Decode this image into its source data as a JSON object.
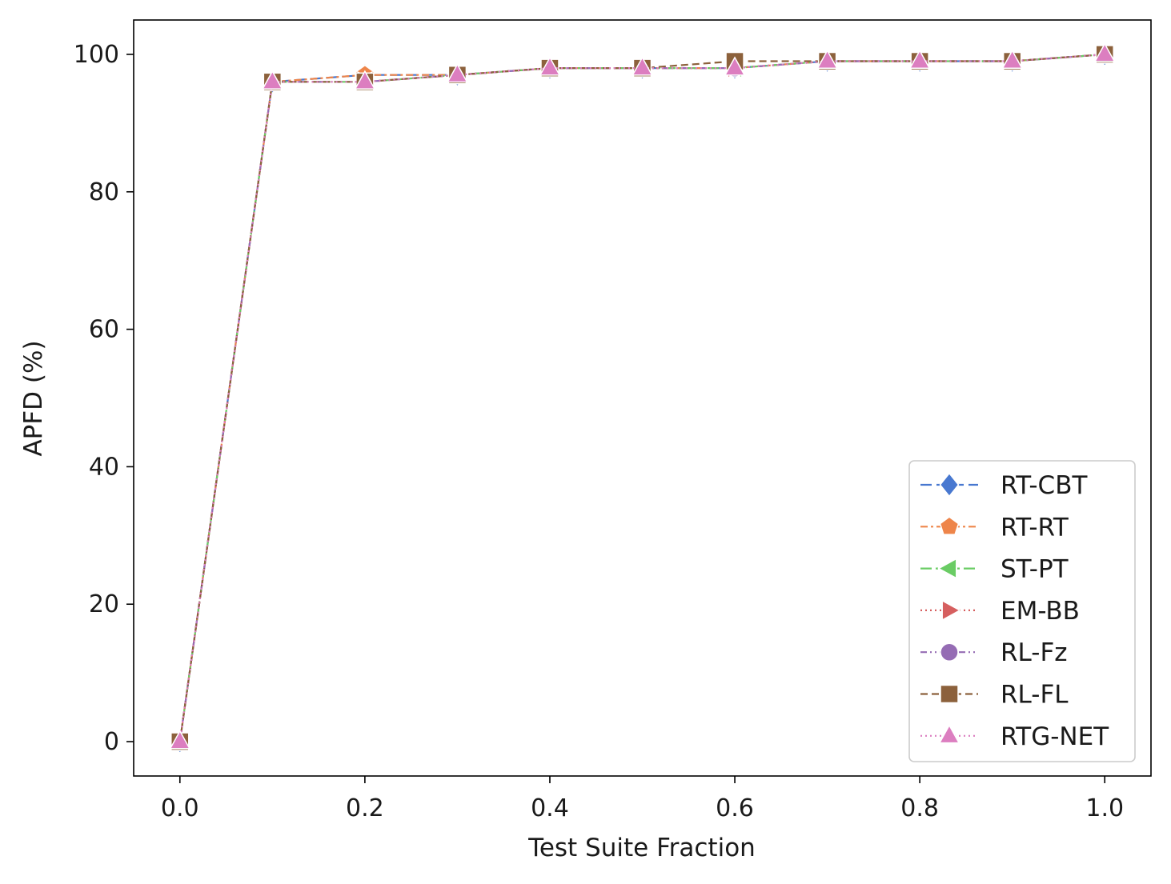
{
  "chart_data": {
    "type": "line",
    "title": "",
    "xlabel": "Test Suite Fraction",
    "ylabel": "APFD (%)",
    "xlim": [
      -0.05,
      1.05
    ],
    "ylim": [
      -5,
      105
    ],
    "x_ticks": [
      0.0,
      0.2,
      0.4,
      0.6,
      0.8,
      1.0
    ],
    "x_tick_labels": [
      "0.0",
      "0.2",
      "0.4",
      "0.6",
      "0.8",
      "1.0"
    ],
    "y_ticks": [
      0,
      20,
      40,
      60,
      80,
      100
    ],
    "y_tick_labels": [
      "0",
      "20",
      "40",
      "60",
      "80",
      "100"
    ],
    "grid": false,
    "legend_position": "lower-right",
    "x": [
      0.0,
      0.1,
      0.2,
      0.3,
      0.4,
      0.5,
      0.6,
      0.7,
      0.8,
      0.9,
      1.0
    ],
    "series": [
      {
        "name": "RT-CBT",
        "color": "#4878d0",
        "marker": "diamond",
        "dash": "long-dash",
        "values": [
          0,
          96,
          97,
          97,
          98,
          98,
          98,
          99,
          99,
          99,
          100
        ]
      },
      {
        "name": "RT-RT",
        "color": "#ee854a",
        "marker": "pentagon",
        "dash": "dash-dot",
        "values": [
          0,
          96,
          97,
          97,
          98,
          98,
          98,
          99,
          99,
          99,
          100
        ]
      },
      {
        "name": "ST-PT",
        "color": "#6acc64",
        "marker": "triangle-left",
        "dash": "long-dash-dot",
        "values": [
          0,
          96,
          96,
          97,
          98,
          98,
          98,
          99,
          99,
          99,
          100
        ]
      },
      {
        "name": "EM-BB",
        "color": "#d65f5f",
        "marker": "triangle-right",
        "dash": "dotted",
        "values": [
          0,
          96,
          96,
          97,
          98,
          98,
          98,
          99,
          99,
          99,
          100
        ]
      },
      {
        "name": "RL-Fz",
        "color": "#956cb4",
        "marker": "circle",
        "dash": "dash-dot-dot",
        "values": [
          0,
          96,
          96,
          97,
          98,
          98,
          98,
          99,
          99,
          99,
          100
        ]
      },
      {
        "name": "RL-FL",
        "color": "#8c613c",
        "marker": "square",
        "dash": "dashed",
        "values": [
          0,
          96,
          96,
          97,
          98,
          98,
          99,
          99,
          99,
          99,
          100
        ]
      },
      {
        "name": "RTG-NET",
        "color": "#dc7ec0",
        "marker": "triangle-up",
        "dash": "dotted",
        "values": [
          0,
          96,
          96,
          97,
          98,
          98,
          98,
          99,
          99,
          99,
          100
        ]
      }
    ]
  }
}
